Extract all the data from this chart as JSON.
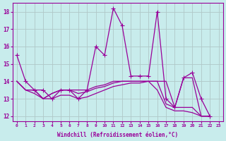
{
  "xlabel": "Windchill (Refroidissement éolien,°C)",
  "line_color": "#990099",
  "bg_color": "#c8ecec",
  "grid_color": "#b0c8c8",
  "x_ticks": [
    0,
    1,
    2,
    3,
    4,
    5,
    6,
    7,
    8,
    9,
    10,
    11,
    12,
    13,
    14,
    15,
    16,
    17,
    18,
    19,
    20,
    21,
    22,
    23
  ],
  "y_ticks": [
    12,
    13,
    14,
    15,
    16,
    17,
    18
  ],
  "ylim": [
    11.7,
    18.5
  ],
  "xlim": [
    -0.5,
    23.5
  ],
  "series": [
    [
      15.5,
      14.0,
      13.5,
      13.5,
      13.0,
      13.5,
      13.5,
      13.0,
      13.5,
      16.0,
      15.5,
      18.2,
      17.2,
      14.3,
      14.3,
      14.3,
      18.0,
      13.0,
      12.5,
      14.2,
      14.5,
      13.0,
      12.0
    ],
    [
      14.0,
      13.5,
      13.5,
      13.0,
      13.3,
      13.5,
      13.5,
      13.5,
      13.5,
      13.7,
      13.8,
      14.0,
      14.0,
      14.0,
      14.0,
      14.0,
      14.0,
      14.0,
      12.5,
      14.2,
      14.2,
      12.0,
      12.0
    ],
    [
      14.0,
      13.5,
      13.5,
      13.0,
      13.3,
      13.5,
      13.5,
      13.3,
      13.4,
      13.6,
      13.7,
      13.9,
      14.0,
      14.0,
      14.0,
      14.0,
      14.0,
      12.7,
      12.5,
      12.5,
      12.5,
      12.0,
      12.0
    ],
    [
      14.0,
      13.5,
      13.3,
      13.0,
      13.0,
      13.2,
      13.2,
      13.0,
      13.1,
      13.3,
      13.5,
      13.7,
      13.8,
      13.9,
      13.9,
      14.0,
      13.5,
      12.5,
      12.3,
      12.3,
      12.2,
      12.0,
      12.0
    ]
  ],
  "marker": "+",
  "markersize": 4,
  "linewidth": 0.9
}
